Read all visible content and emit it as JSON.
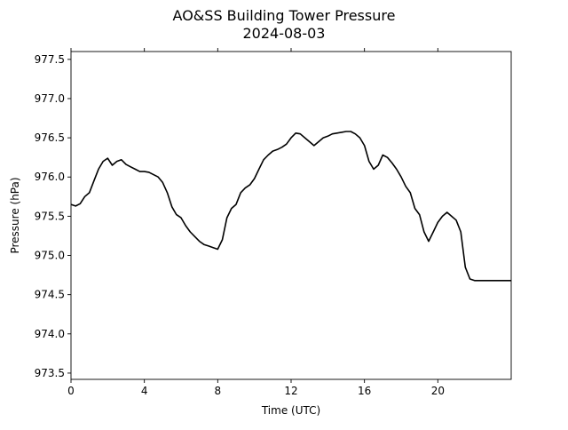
{
  "chart_data": {
    "type": "line",
    "title": "AO&SS Building Tower Pressure",
    "subtitle": "2024-08-03",
    "xlabel": "Time (UTC)",
    "ylabel": "Pressure (hPa)",
    "xlim": [
      0,
      24
    ],
    "ylim": [
      973.42,
      977.6
    ],
    "x_ticks": [
      0,
      4,
      8,
      12,
      16,
      20
    ],
    "y_ticks": [
      973.5,
      974.0,
      974.5,
      975.0,
      975.5,
      976.0,
      976.5,
      977.0,
      977.5
    ],
    "x_tick_labels": [
      "0",
      "4",
      "8",
      "12",
      "16",
      "20"
    ],
    "y_tick_labels": [
      "973.5",
      "974.0",
      "974.5",
      "975.0",
      "975.5",
      "976.0",
      "976.5",
      "977.0",
      "977.5"
    ],
    "grid": false,
    "line_color": "#000000",
    "series": [
      {
        "x": [
          0,
          0.25,
          0.5,
          0.75,
          1.0,
          1.25,
          1.5,
          1.75,
          2.0,
          2.25,
          2.5,
          2.75,
          3.0,
          3.25,
          3.5,
          3.75,
          4.0,
          4.25,
          4.5,
          4.75,
          5.0,
          5.25,
          5.5,
          5.75,
          6.0,
          6.25,
          6.5,
          6.75,
          7.0,
          7.25,
          7.5,
          7.75,
          8.0,
          8.25,
          8.5,
          8.75,
          9.0,
          9.25,
          9.5,
          9.75,
          10.0,
          10.25,
          10.5,
          10.75,
          11.0,
          11.25,
          11.5,
          11.75,
          12.0,
          12.25,
          12.5,
          12.75,
          13.0,
          13.25,
          13.5,
          13.75,
          14.0,
          14.25,
          14.5,
          14.75,
          15.0,
          15.25,
          15.5,
          15.75,
          16.0,
          16.25,
          16.5,
          16.75,
          17.0,
          17.25,
          17.5,
          17.75,
          18.0,
          18.25,
          18.5,
          18.75,
          19.0,
          19.25,
          19.5,
          19.75,
          20.0,
          20.25,
          20.5,
          20.75,
          21.0,
          21.25,
          21.5,
          21.75,
          22.0,
          22.25,
          22.5,
          22.75,
          23.0,
          23.25,
          23.5,
          23.75,
          24.0
        ],
        "values": [
          975.65,
          975.63,
          975.66,
          975.75,
          975.8,
          975.95,
          976.1,
          976.2,
          976.24,
          976.15,
          976.2,
          976.22,
          976.16,
          976.13,
          976.1,
          976.07,
          976.07,
          976.06,
          976.03,
          976.0,
          975.93,
          975.8,
          975.62,
          975.52,
          975.48,
          975.38,
          975.3,
          975.24,
          975.18,
          975.14,
          975.12,
          975.1,
          975.08,
          975.2,
          975.48,
          975.6,
          975.65,
          975.8,
          975.86,
          975.9,
          975.98,
          976.1,
          976.22,
          976.28,
          976.33,
          976.35,
          976.38,
          976.42,
          976.5,
          976.56,
          976.55,
          976.5,
          976.45,
          976.4,
          976.45,
          976.5,
          976.52,
          976.55,
          976.56,
          976.57,
          976.58,
          976.58,
          976.55,
          976.5,
          976.4,
          976.2,
          976.1,
          976.15,
          976.28,
          976.25,
          976.18,
          976.1,
          976.0,
          975.88,
          975.8,
          975.6,
          975.52,
          975.3,
          975.18,
          975.3,
          975.42,
          975.5,
          975.55,
          975.5,
          975.45,
          975.3,
          974.85,
          974.7,
          974.68,
          974.68,
          974.68,
          974.68,
          974.68,
          974.68,
          974.68,
          974.68,
          974.68
        ]
      }
    ]
  }
}
